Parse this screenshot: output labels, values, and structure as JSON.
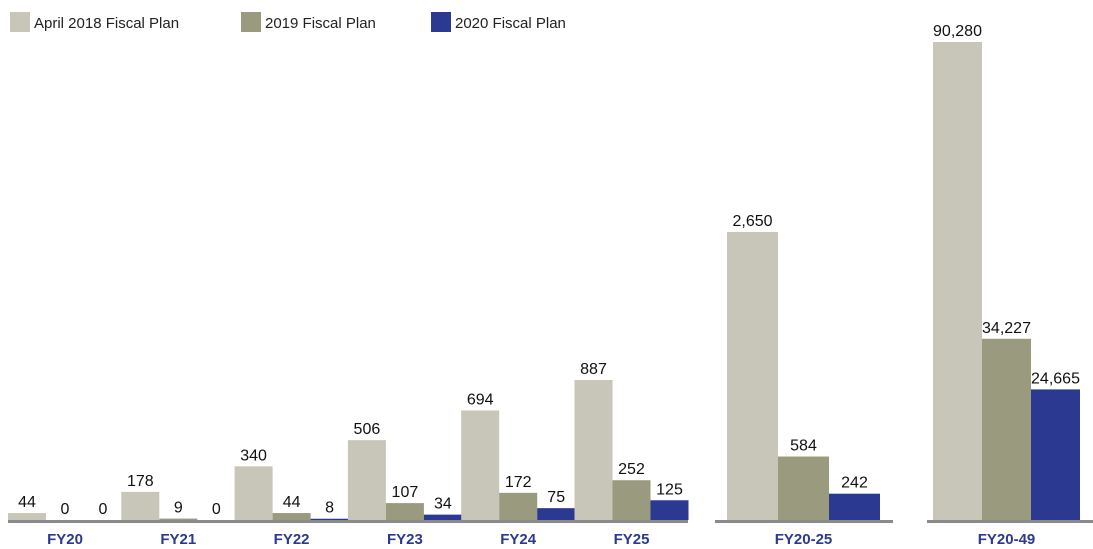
{
  "chart_data": [
    {
      "type": "bar",
      "categories": [
        "FY20",
        "FY21",
        "FY22",
        "FY23",
        "FY24",
        "FY25"
      ],
      "series": [
        {
          "name": "April 2018 Fiscal Plan",
          "color": "#c8c6b9",
          "values": [
            44,
            178,
            340,
            506,
            694,
            887
          ]
        },
        {
          "name": "2019 Fiscal Plan",
          "color": "#9a9a7f",
          "values": [
            0,
            9,
            44,
            107,
            172,
            252
          ]
        },
        {
          "name": "2020 Fiscal Plan",
          "color": "#2b3990",
          "values": [
            0,
            0,
            8,
            34,
            75,
            125
          ]
        }
      ]
    },
    {
      "type": "bar",
      "categories": [
        "FY20-25"
      ],
      "series": [
        {
          "values": [
            2650
          ],
          "value_labels": [
            "2,650"
          ]
        },
        {
          "values": [
            584
          ]
        },
        {
          "values": [
            242
          ]
        }
      ]
    },
    {
      "type": "bar",
      "categories": [
        "FY20-49"
      ],
      "series": [
        {
          "values": [
            90280
          ],
          "value_labels": [
            "90,280"
          ]
        },
        {
          "values": [
            34227
          ],
          "value_labels": [
            "34,227"
          ]
        },
        {
          "values": [
            24665
          ],
          "value_labels": [
            "24,665"
          ]
        }
      ]
    }
  ]
}
